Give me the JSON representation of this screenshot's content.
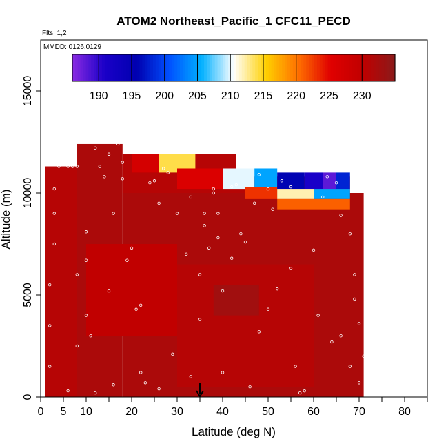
{
  "chart_data": {
    "type": "heatmap",
    "title": "ATOM2 Northeast_Pacific_1 CFC11_PECD",
    "subtitle_flights": "Flts: 1,2",
    "subtitle_dates": "MMDD: 0126,0129",
    "xlabel": "Latitude (deg N)",
    "ylabel": "Altitude (m)",
    "xlim": [
      0,
      85
    ],
    "ylim": [
      0,
      17500
    ],
    "x_ticks": [
      0,
      5,
      10,
      20,
      30,
      40,
      50,
      60,
      70,
      80
    ],
    "y_ticks": [
      0,
      5000,
      10000,
      15000
    ],
    "y_tick_labels": [
      "0",
      "5000",
      "10000",
      "15000"
    ],
    "colorbar": {
      "min": 186,
      "max": 235,
      "ticks": [
        190,
        195,
        200,
        205,
        210,
        215,
        220,
        225,
        230
      ],
      "colors": [
        "#8a2be2",
        "#1a00c8",
        "#0000b0",
        "#0050ff",
        "#00b0ff",
        "#ffffff",
        "#ffd000",
        "#ff7000",
        "#e00000",
        "#c00000",
        "#8b1a1a"
      ]
    },
    "marker_latitude": 35,
    "grid": false,
    "regions": [
      {
        "lat": [
          1,
          8
        ],
        "alt": [
          0,
          11300
        ],
        "value": 231
      },
      {
        "lat": [
          8,
          18
        ],
        "alt": [
          0,
          12400
        ],
        "value": 232
      },
      {
        "lat": [
          18,
          71
        ],
        "alt": [
          0,
          10000
        ],
        "value": 232
      },
      {
        "lat": [
          18,
          43
        ],
        "alt": [
          10000,
          11900
        ],
        "value": 231
      },
      {
        "lat": [
          43,
          68
        ],
        "alt": [
          10000,
          10800
        ],
        "value": 231
      },
      {
        "lat": [
          10,
          30
        ],
        "alt": [
          3000,
          7500
        ],
        "value": 230
      },
      {
        "lat": [
          30,
          60
        ],
        "alt": [
          500,
          6500
        ],
        "value": 231
      },
      {
        "lat": [
          38,
          48
        ],
        "alt": [
          4000,
          5500
        ],
        "value": 233
      },
      {
        "lat": [
          20,
          26
        ],
        "alt": [
          11000,
          11900
        ],
        "value": 227
      },
      {
        "lat": [
          26,
          34
        ],
        "alt": [
          11000,
          11900
        ],
        "value": 214
      },
      {
        "lat": [
          30,
          40
        ],
        "alt": [
          10200,
          11200
        ],
        "value": 226
      },
      {
        "lat": [
          40,
          47
        ],
        "alt": [
          10200,
          11200
        ],
        "value": 210
      },
      {
        "lat": [
          47,
          52
        ],
        "alt": [
          10200,
          11200
        ],
        "value": 205
      },
      {
        "lat": [
          45,
          52
        ],
        "alt": [
          9700,
          10300
        ],
        "value": 223
      },
      {
        "lat": [
          52,
          58
        ],
        "alt": [
          10200,
          11000
        ],
        "value": 196
      },
      {
        "lat": [
          58,
          62
        ],
        "alt": [
          10200,
          11000
        ],
        "value": 191
      },
      {
        "lat": [
          62,
          65
        ],
        "alt": [
          10200,
          11000
        ],
        "value": 188
      },
      {
        "lat": [
          65,
          68
        ],
        "alt": [
          10200,
          11000
        ],
        "value": 198
      },
      {
        "lat": [
          52,
          60
        ],
        "alt": [
          9700,
          10200
        ],
        "value": 212
      },
      {
        "lat": [
          60,
          68
        ],
        "alt": [
          9700,
          10200
        ],
        "value": 205
      },
      {
        "lat": [
          52,
          68
        ],
        "alt": [
          9200,
          9700
        ],
        "value": 221
      }
    ],
    "points": [
      [
        2,
        3500
      ],
      [
        2,
        5500
      ],
      [
        3,
        7500
      ],
      [
        2,
        1500
      ],
      [
        3,
        9000
      ],
      [
        3,
        10200
      ],
      [
        4,
        11300
      ],
      [
        6,
        11300
      ],
      [
        7,
        11300
      ],
      [
        8,
        11300
      ],
      [
        8,
        6000
      ],
      [
        8,
        2500
      ],
      [
        10,
        6700
      ],
      [
        10,
        4000
      ],
      [
        11,
        3000
      ],
      [
        12,
        12200
      ],
      [
        13,
        11300
      ],
      [
        14,
        10800
      ],
      [
        15,
        11900
      ],
      [
        16,
        9000
      ],
      [
        17,
        12400
      ],
      [
        18,
        11500
      ],
      [
        18,
        10700
      ],
      [
        19,
        6700
      ],
      [
        20,
        7300
      ],
      [
        21,
        4300
      ],
      [
        22,
        1200
      ],
      [
        23,
        700
      ],
      [
        24,
        10500
      ],
      [
        25,
        10600
      ],
      [
        26,
        9500
      ],
      [
        27,
        11200
      ],
      [
        28,
        11000
      ],
      [
        30,
        9000
      ],
      [
        32,
        7000
      ],
      [
        33,
        9800
      ],
      [
        35,
        3800
      ],
      [
        36,
        8400
      ],
      [
        36,
        9000
      ],
      [
        37,
        7300
      ],
      [
        38,
        10000
      ],
      [
        38,
        10200
      ],
      [
        39,
        9000
      ],
      [
        39,
        7800
      ],
      [
        40,
        5200
      ],
      [
        42,
        10300
      ],
      [
        43,
        10400
      ],
      [
        44,
        8000
      ],
      [
        46,
        500
      ],
      [
        47,
        9500
      ],
      [
        48,
        10900
      ],
      [
        50,
        10200
      ],
      [
        51,
        9200
      ],
      [
        52,
        5300
      ],
      [
        53,
        10600
      ],
      [
        55,
        10300
      ],
      [
        56,
        1500
      ],
      [
        57,
        200
      ],
      [
        58,
        300
      ],
      [
        60,
        7200
      ],
      [
        61,
        4000
      ],
      [
        62,
        9800
      ],
      [
        63,
        10800
      ],
      [
        65,
        10500
      ],
      [
        66,
        8900
      ],
      [
        68,
        8000
      ],
      [
        69,
        6000
      ],
      [
        69,
        4800
      ],
      [
        70,
        3600
      ],
      [
        71,
        2000
      ],
      [
        70,
        700
      ],
      [
        68,
        1500
      ],
      [
        66,
        3000
      ],
      [
        6,
        300
      ],
      [
        12,
        200
      ],
      [
        16,
        600
      ],
      [
        26,
        400
      ],
      [
        33,
        1000
      ],
      [
        40,
        1200
      ],
      [
        10,
        8100
      ],
      [
        15,
        5200
      ],
      [
        22,
        4500
      ],
      [
        29,
        2100
      ],
      [
        50,
        4300
      ],
      [
        64,
        2700
      ],
      [
        55,
        6300
      ],
      [
        48,
        3200
      ],
      [
        45,
        7600
      ],
      [
        42,
        6800
      ],
      [
        35,
        6000
      ]
    ]
  }
}
